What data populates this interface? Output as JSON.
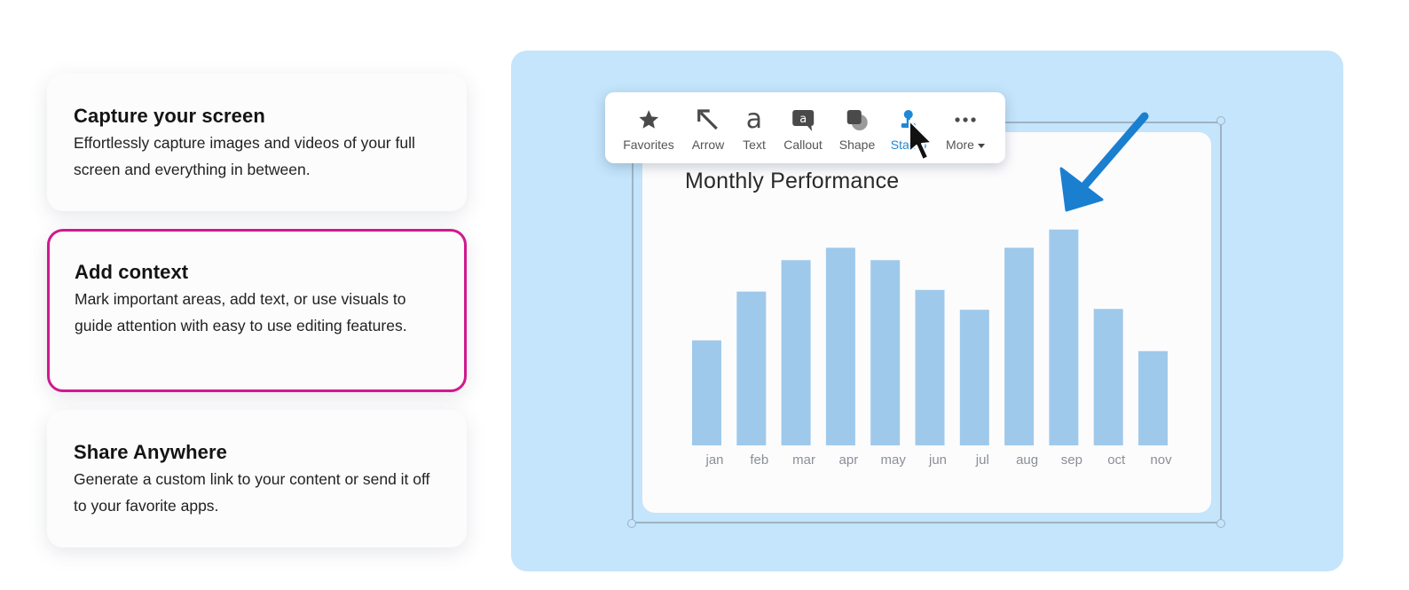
{
  "features": [
    {
      "title": "Capture your screen",
      "description": "Effortlessly capture images and videos of your full screen and everything in between."
    },
    {
      "title": "Add context",
      "description": "Mark important areas, add text, or use visuals to guide attention with easy to use editing features."
    },
    {
      "title": "Share Anywhere",
      "description": "Generate a custom link to your content or send it off to your favorite apps."
    }
  ],
  "toolbar": {
    "tools": [
      {
        "label": "Favorites",
        "icon": "star-icon"
      },
      {
        "label": "Arrow",
        "icon": "arrow-icon"
      },
      {
        "label": "Text",
        "icon": "text-icon"
      },
      {
        "label": "Callout",
        "icon": "callout-icon"
      },
      {
        "label": "Shape",
        "icon": "shape-icon"
      },
      {
        "label": "Stamp",
        "icon": "stamp-icon"
      },
      {
        "label": "More",
        "icon": "more-icon"
      }
    ],
    "selected_tool": "Stamp"
  },
  "colors": {
    "accent_border": "#d0198f",
    "panel_bg": "#c4e5fb",
    "bar": "#9fc9ea",
    "annotation_arrow": "#1b7fd0"
  },
  "chart_data": {
    "type": "bar",
    "title": "Monthly Performance",
    "categories": [
      "jan",
      "feb",
      "mar",
      "apr",
      "may",
      "jun",
      "jul",
      "aug",
      "sep",
      "oct",
      "nov"
    ],
    "values": [
      127,
      186,
      224,
      239,
      224,
      188,
      164,
      239,
      261,
      165,
      114
    ],
    "ylim": [
      0,
      280
    ],
    "xlabel": "",
    "ylabel": "",
    "grid": false
  }
}
